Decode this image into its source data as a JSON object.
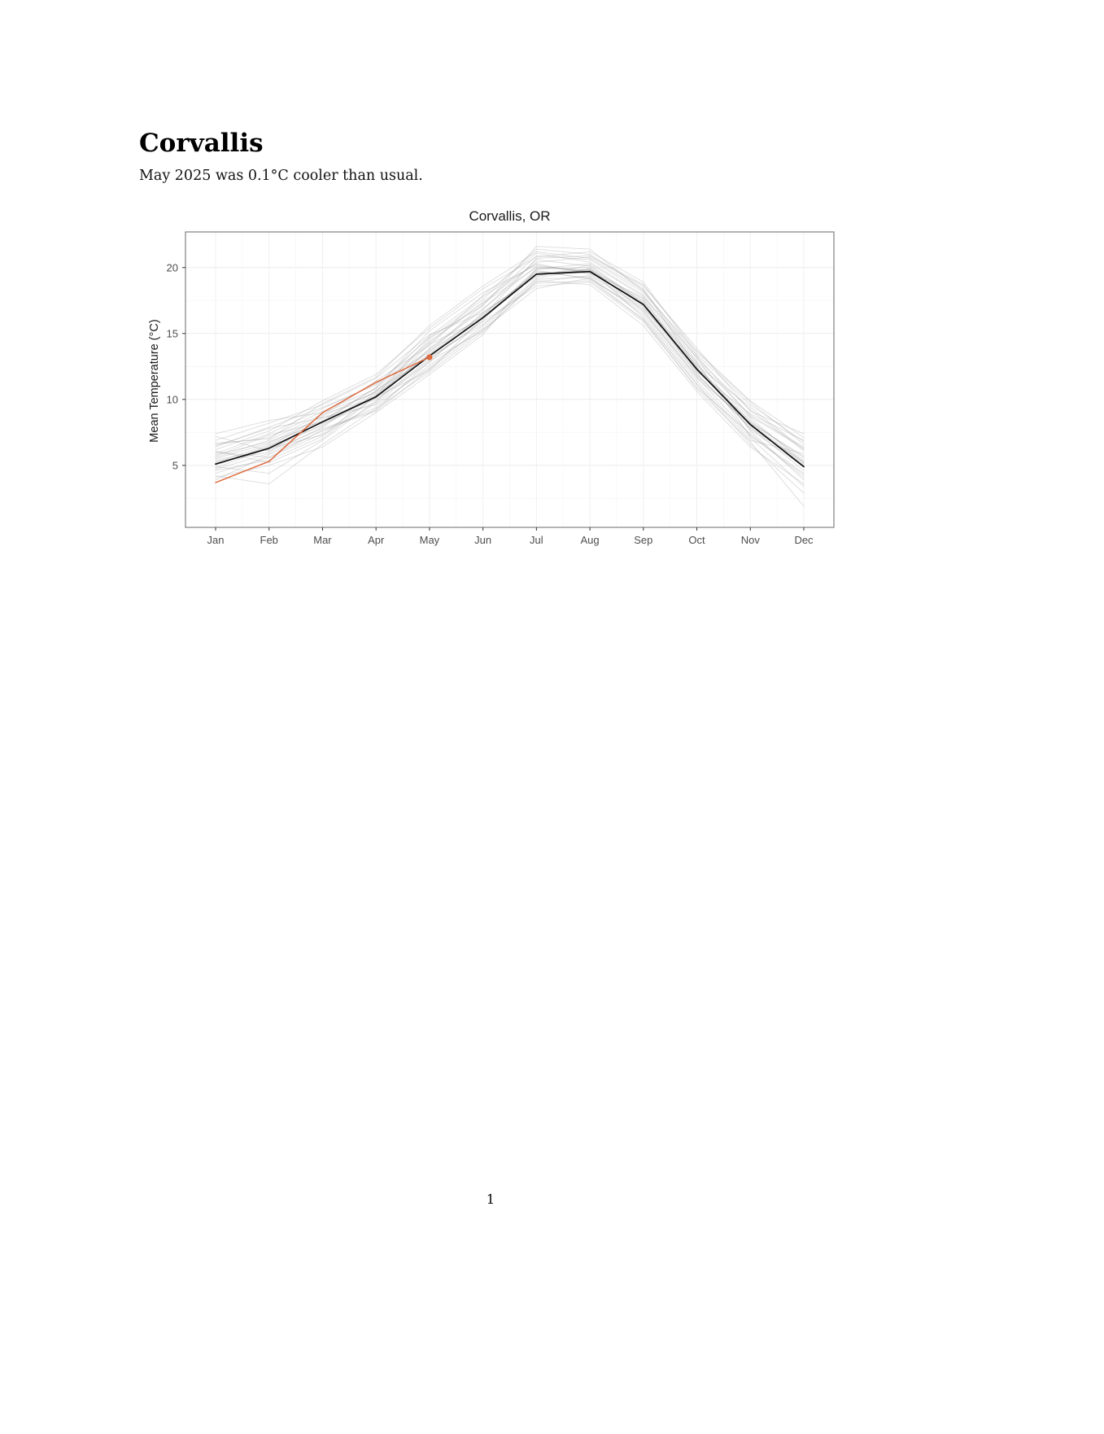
{
  "header": {
    "title": "Corvallis",
    "subtitle": "May 2025 was 0.1°C cooler than usual."
  },
  "page": {
    "footer_page_number": "1"
  },
  "chart_data": {
    "type": "line",
    "title": "Corvallis, OR",
    "xlabel": "",
    "ylabel": "Mean Temperature (°C)",
    "x": [
      "Jan",
      "Feb",
      "Mar",
      "Apr",
      "May",
      "Jun",
      "Jul",
      "Aug",
      "Sep",
      "Oct",
      "Nov",
      "Dec"
    ],
    "ylim": [
      0.3,
      22.7
    ],
    "yticks": [
      5,
      10,
      15,
      20
    ],
    "grid": "faint-major-and-minor",
    "legend": "none",
    "colors": {
      "historical": "#8c8c8c",
      "mean": "#111111",
      "current": "#de6a3f",
      "panel_border": "#808080"
    },
    "series": [
      {
        "name": "historical-years",
        "role": "spaghetti",
        "color": "#8c8c8c",
        "opacity": 0.3,
        "lines": [
          [
            6.5,
            7.8,
            8.6,
            9.6,
            12.4,
            15.6,
            19.2,
            19.9,
            17.6,
            12.1,
            8.9,
            6.9
          ],
          [
            4.6,
            5.4,
            7.2,
            10.6,
            13.8,
            16.8,
            20.6,
            20.1,
            17.2,
            12.8,
            7.2,
            4.3
          ],
          [
            5.6,
            6.9,
            8.9,
            10.1,
            14.2,
            16.1,
            19.7,
            19.2,
            16.6,
            11.6,
            8.2,
            5.7
          ],
          [
            7.2,
            6.1,
            7.8,
            9.2,
            12.9,
            15.2,
            18.9,
            19.4,
            16.9,
            12.6,
            9.4,
            6.2
          ],
          [
            4.1,
            5.0,
            6.4,
            9.0,
            11.9,
            14.9,
            19.9,
            20.3,
            17.8,
            13.2,
            7.6,
            3.9
          ],
          [
            5.9,
            7.4,
            9.3,
            11.2,
            13.6,
            17.2,
            20.9,
            20.6,
            18.1,
            13.6,
            9.8,
            6.6
          ],
          [
            6.1,
            5.2,
            7.0,
            10.3,
            14.6,
            17.6,
            21.4,
            21.0,
            18.4,
            12.4,
            8.6,
            5.2
          ],
          [
            5.2,
            6.6,
            8.4,
            10.9,
            15.2,
            18.1,
            20.2,
            19.6,
            17.4,
            11.9,
            7.9,
            4.6
          ],
          [
            6.9,
            8.2,
            9.6,
            11.6,
            14.9,
            16.6,
            19.4,
            19.9,
            16.2,
            11.2,
            6.9,
            5.9
          ],
          [
            4.9,
            4.4,
            6.9,
            9.9,
            13.1,
            15.9,
            18.6,
            18.9,
            15.9,
            10.9,
            7.4,
            4.1
          ],
          [
            5.4,
            6.2,
            8.1,
            10.4,
            13.4,
            16.4,
            19.6,
            19.8,
            17.1,
            12.2,
            8.4,
            5.4
          ],
          [
            6.6,
            7.1,
            9.1,
            10.8,
            14.4,
            17.4,
            20.4,
            20.8,
            18.6,
            13.9,
            9.1,
            7.4
          ],
          [
            3.9,
            5.8,
            7.6,
            9.4,
            12.6,
            15.4,
            19.1,
            19.3,
            16.4,
            11.4,
            7.1,
            3.4
          ],
          [
            5.1,
            6.4,
            8.8,
            11.4,
            14.1,
            17.9,
            21.1,
            20.4,
            17.9,
            12.9,
            8.8,
            6.4
          ],
          [
            6.2,
            7.6,
            9.9,
            11.9,
            15.4,
            18.4,
            20.8,
            21.2,
            18.9,
            13.4,
            9.6,
            6.8
          ],
          [
            4.4,
            5.6,
            7.4,
            10.2,
            12.2,
            16.2,
            19.8,
            19.1,
            16.8,
            11.8,
            8.1,
            5.1
          ],
          [
            5.8,
            6.8,
            8.2,
            9.8,
            13.9,
            16.9,
            20.1,
            19.7,
            17.7,
            12.7,
            7.7,
            4.9
          ],
          [
            6.4,
            7.9,
            9.4,
            11.1,
            14.7,
            17.1,
            21.6,
            21.4,
            18.2,
            13.1,
            9.2,
            6.1
          ],
          [
            4.7,
            5.9,
            7.9,
            10.7,
            13.2,
            15.7,
            18.8,
            19.0,
            16.1,
            11.1,
            6.6,
            2.9
          ],
          [
            5.3,
            6.0,
            8.6,
            10.0,
            12.8,
            16.6,
            19.3,
            20.2,
            17.3,
            12.3,
            8.3,
            5.6
          ],
          [
            7.4,
            8.4,
            9.0,
            10.5,
            13.7,
            16.3,
            20.7,
            20.9,
            18.7,
            13.7,
            9.9,
            7.1
          ],
          [
            4.2,
            3.6,
            6.6,
            9.3,
            12.1,
            15.1,
            19.0,
            18.7,
            15.6,
            10.6,
            6.4,
            3.6
          ],
          [
            5.7,
            7.3,
            8.3,
            10.9,
            14.8,
            17.8,
            20.3,
            19.5,
            17.0,
            12.0,
            7.8,
            5.3
          ],
          [
            6.7,
            7.0,
            9.7,
            11.7,
            15.6,
            18.6,
            21.2,
            20.7,
            18.3,
            13.3,
            8.7,
            6.3
          ],
          [
            4.8,
            6.3,
            7.3,
            9.7,
            13.0,
            16.0,
            19.9,
            20.0,
            16.7,
            11.7,
            7.3,
            4.4
          ],
          [
            5.5,
            6.7,
            8.7,
            10.6,
            14.3,
            17.3,
            20.0,
            19.8,
            17.5,
            12.5,
            8.0,
            5.0
          ],
          [
            6.0,
            5.6,
            7.7,
            9.1,
            12.3,
            15.3,
            18.4,
            19.2,
            16.0,
            10.8,
            6.8,
            1.9
          ],
          [
            5.0,
            6.5,
            8.0,
            10.3,
            13.5,
            16.5,
            19.5,
            19.6,
            17.2,
            12.2,
            8.2,
            5.2
          ]
        ]
      },
      {
        "name": "climatological-mean",
        "role": "mean-line",
        "color": "#111111",
        "width": 1.7,
        "values": [
          5.1,
          6.3,
          8.3,
          10.2,
          13.3,
          16.2,
          19.5,
          19.7,
          17.2,
          12.3,
          8.1,
          4.9
        ]
      },
      {
        "name": "2025",
        "role": "current-year",
        "color": "#de6a3f",
        "width": 1.5,
        "values": [
          3.7,
          5.3,
          9.0,
          11.3,
          13.2
        ],
        "endpoint_dot": {
          "month": "May",
          "value": 13.2
        }
      }
    ]
  }
}
